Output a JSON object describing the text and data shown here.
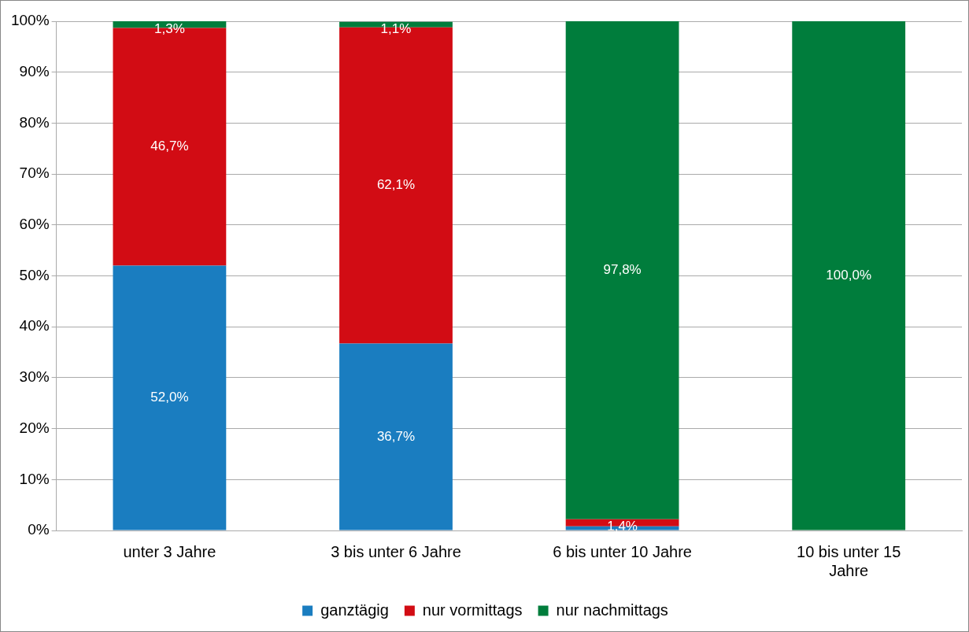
{
  "chart_data": {
    "type": "bar",
    "stacked": true,
    "categories": [
      "unter 3 Jahre",
      "3 bis unter 6 Jahre",
      "6 bis unter 10 Jahre",
      "10 bis unter 15 Jahre"
    ],
    "series": [
      {
        "name": "ganztägig",
        "color": "#1a7dc0",
        "values": [
          52.0,
          36.7,
          0.8,
          0
        ],
        "value_labels": [
          "52,0%",
          "36,7%",
          null,
          null
        ]
      },
      {
        "name": "nur vormittags",
        "color": "#d20c14",
        "values": [
          46.7,
          62.1,
          1.4,
          0
        ],
        "value_labels": [
          "46,7%",
          "62,1%",
          "1,4%",
          null
        ]
      },
      {
        "name": "nur nachmittags",
        "color": "#007d3c",
        "values": [
          1.3,
          1.1,
          97.8,
          100.0
        ],
        "value_labels": [
          "1,3%",
          "1,1%",
          "97,8%",
          "100,0%"
        ]
      }
    ],
    "ylim": [
      0,
      100
    ],
    "yticks": [
      {
        "value": 0,
        "label": "0%"
      },
      {
        "value": 10,
        "label": "10%"
      },
      {
        "value": 20,
        "label": "20%"
      },
      {
        "value": 30,
        "label": "30%"
      },
      {
        "value": 40,
        "label": "40%"
      },
      {
        "value": 50,
        "label": "50%"
      },
      {
        "value": 60,
        "label": "60%"
      },
      {
        "value": 70,
        "label": "70%"
      },
      {
        "value": 80,
        "label": "80%"
      },
      {
        "value": 90,
        "label": "90%"
      },
      {
        "value": 100,
        "label": "100%"
      }
    ],
    "grid": "y",
    "legend": "bottom"
  }
}
